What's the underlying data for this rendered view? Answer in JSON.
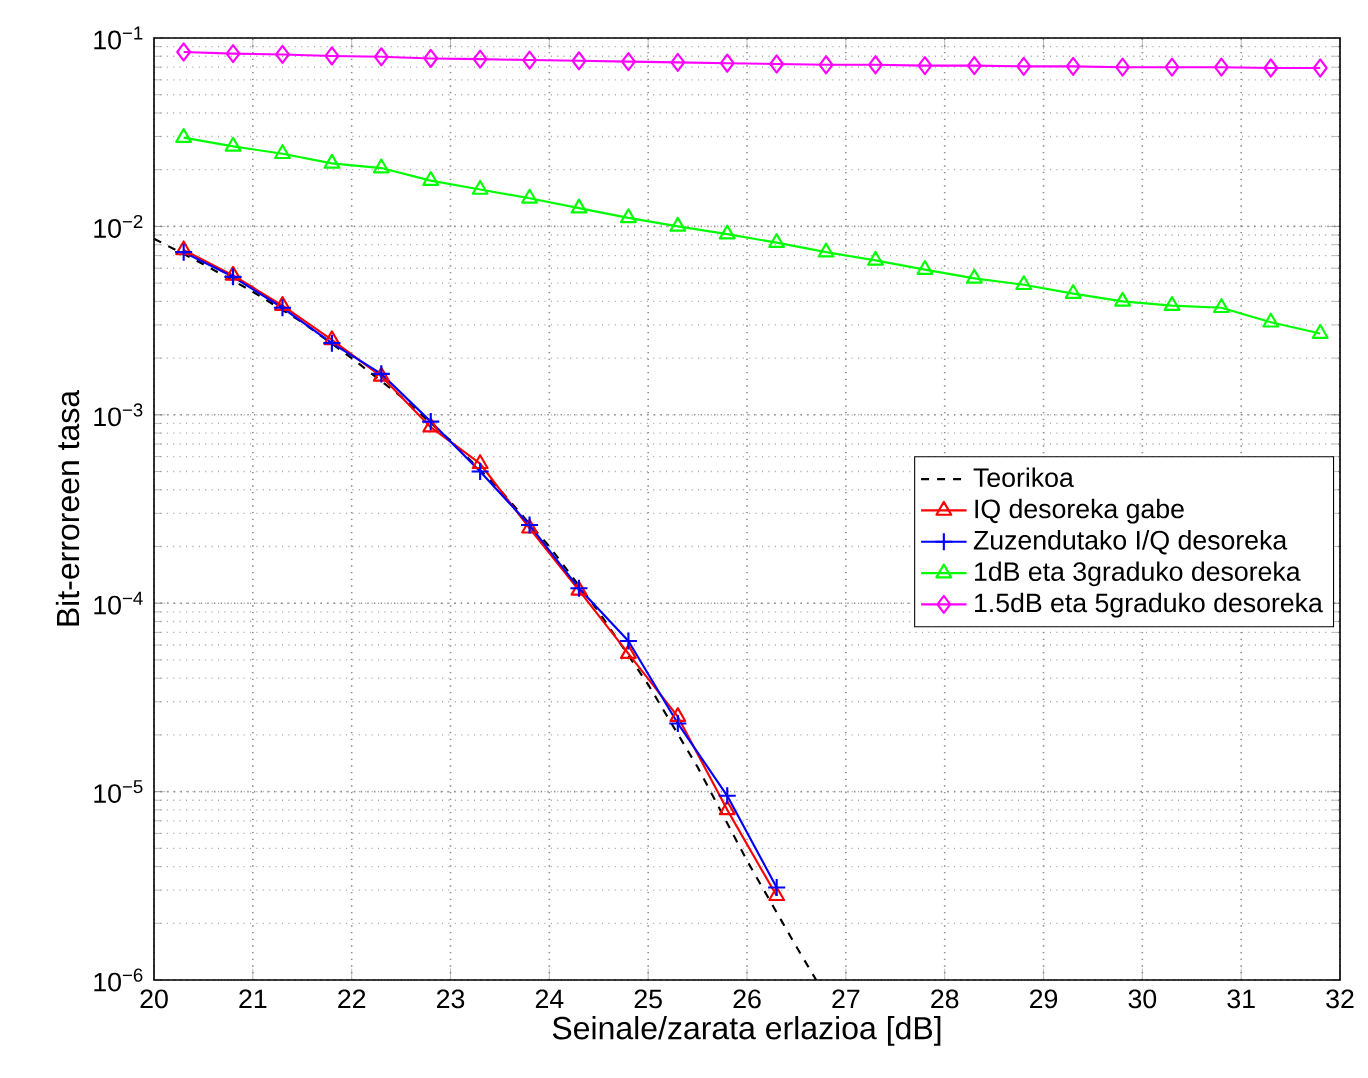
{
  "chart_data": {
    "type": "line",
    "xlabel": "Seinale/zarata erlazioa [dB]",
    "ylabel": "Bit-erroreen tasa",
    "log": "y",
    "grid": true,
    "legend": "right",
    "xlim": [
      20,
      32
    ],
    "xticks": [
      20,
      21,
      22,
      23,
      24,
      25,
      26,
      27,
      28,
      29,
      30,
      31,
      32
    ],
    "ylim": [
      1e-06,
      0.1
    ],
    "yticks": [
      {
        "value": 1e-06,
        "label": "10$^{−6}$"
      },
      {
        "value": 1e-05,
        "label": "10$^{−5}$"
      },
      {
        "value": 0.0001,
        "label": "10$^{−4}$"
      },
      {
        "value": 0.001,
        "label": "10$^{−3}$"
      },
      {
        "value": 0.01,
        "label": "10$^{−2}$"
      },
      {
        "value": 0.1,
        "label": "10$^{−1}$"
      }
    ],
    "series": [
      {
        "name": "Teorikoa",
        "color": "#000000",
        "line_style": "dashed",
        "marker": "none",
        "x": [
          20,
          20.5,
          21,
          21.5,
          22,
          22.5,
          23,
          23.5,
          24,
          24.5,
          25,
          25.5,
          26,
          26.5,
          26.7
        ],
        "values": [
          0.0086,
          0.0063,
          0.0045,
          0.0031,
          0.002,
          0.00125,
          0.00073,
          0.0004,
          0.0002,
          9e-05,
          3.7e-05,
          1.35e-05,
          4.3e-06,
          1.5e-06,
          1e-06
        ]
      },
      {
        "name": "IQ desoreka gabe",
        "color": "#ff0000",
        "line_style": "solid",
        "marker": "triangle",
        "x": [
          20.3,
          20.8,
          21.3,
          21.8,
          22.3,
          22.8,
          23.3,
          23.8,
          24.3,
          24.8,
          25.3,
          25.8,
          26.3
        ],
        "values": [
          0.0075,
          0.0055,
          0.0038,
          0.0025,
          0.0016,
          0.00086,
          0.00055,
          0.00025,
          0.000117,
          5.4e-05,
          2.5e-05,
          8e-06,
          2.8e-06
        ]
      },
      {
        "name": "Zuzendutako I/Q desoreka",
        "color": "#0000ff",
        "line_style": "solid",
        "marker": "cross",
        "x": [
          20.3,
          20.8,
          21.3,
          21.8,
          22.3,
          22.8,
          23.3,
          23.8,
          24.3,
          24.8,
          25.3,
          25.8,
          26.3
        ],
        "values": [
          0.0073,
          0.0054,
          0.0037,
          0.0024,
          0.00165,
          0.00092,
          0.0005,
          0.00026,
          0.00012,
          6.3e-05,
          2.3e-05,
          9.5e-06,
          3.1e-06
        ]
      },
      {
        "name": "1dB eta 3graduko desoreka",
        "color": "#00ff00",
        "line_style": "solid",
        "marker": "triangle",
        "x": [
          20.3,
          20.8,
          21.3,
          21.8,
          22.3,
          22.8,
          23.3,
          23.8,
          24.3,
          24.8,
          25.3,
          25.8,
          26.3,
          26.8,
          27.3,
          27.8,
          28.3,
          28.8,
          29.3,
          29.8,
          30.3,
          30.8,
          31.3,
          31.8
        ],
        "values": [
          0.0296,
          0.0266,
          0.0243,
          0.0216,
          0.0204,
          0.0175,
          0.0157,
          0.0141,
          0.0125,
          0.0111,
          0.01,
          0.0091,
          0.0082,
          0.0073,
          0.0066,
          0.0059,
          0.0053,
          0.0049,
          0.0044,
          0.004,
          0.0038,
          0.0037,
          0.0031,
          0.0027
        ]
      },
      {
        "name": "1.5dB eta 5graduko desoreka",
        "color": "#ff00ff",
        "line_style": "solid",
        "marker": "diamond",
        "x": [
          20.3,
          20.8,
          21.3,
          21.8,
          22.3,
          22.8,
          23.3,
          23.8,
          24.3,
          24.8,
          25.3,
          25.8,
          26.3,
          26.8,
          27.3,
          27.8,
          28.3,
          28.8,
          29.3,
          29.8,
          30.3,
          30.8,
          31.3,
          31.8
        ],
        "values": [
          0.0843,
          0.0826,
          0.0818,
          0.0803,
          0.0795,
          0.0779,
          0.0772,
          0.0764,
          0.0757,
          0.075,
          0.0742,
          0.0735,
          0.0728,
          0.0721,
          0.0721,
          0.0714,
          0.0714,
          0.0707,
          0.0707,
          0.07,
          0.07,
          0.07,
          0.0693,
          0.0693
        ]
      }
    ]
  }
}
